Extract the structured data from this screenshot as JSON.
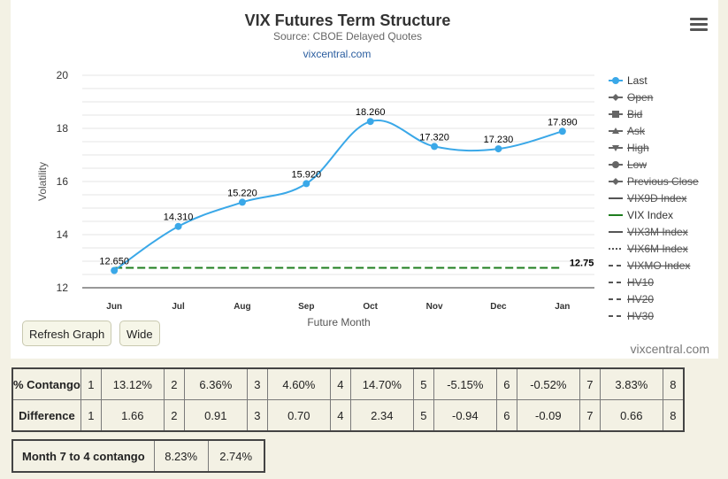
{
  "chart": {
    "title": "VIX Futures Term Structure",
    "subtitle": "Source: CBOE Delayed Quotes",
    "link": "vixcentral.com",
    "credit": "vixcentral.com"
  },
  "chart_data": {
    "type": "line",
    "title": "VIX Futures Term Structure",
    "subtitle": "Source: CBOE Delayed Quotes",
    "xlabel": "Future Month",
    "ylabel": "Volatility",
    "categories": [
      "Jun",
      "Jul",
      "Aug",
      "Sep",
      "Oct",
      "Nov",
      "Dec",
      "Jan"
    ],
    "ylim": [
      12,
      20
    ],
    "yticks": [
      "12",
      "14",
      "16",
      "18",
      "20"
    ],
    "grid": true,
    "legend_position": "right",
    "series": [
      {
        "name": "Last",
        "values": [
          12.65,
          14.31,
          15.22,
          15.92,
          18.26,
          17.32,
          17.23,
          17.89
        ],
        "labels": [
          "12.650",
          "14.310",
          "15.220",
          "15.920",
          "18.260",
          "17.320",
          "17.230",
          "17.890"
        ],
        "color": "#3aa8e8"
      },
      {
        "name": "VIX Index",
        "values": [
          12.75,
          12.75,
          12.75,
          12.75,
          12.75,
          12.75,
          12.75,
          12.75
        ],
        "end_label": "12.75",
        "color": "#1e7d1e",
        "dash": true
      }
    ],
    "legend": [
      {
        "name": "Last",
        "visible": true,
        "symbol": "circle"
      },
      {
        "name": "Open",
        "visible": false,
        "symbol": "diamond"
      },
      {
        "name": "Bid",
        "visible": false,
        "symbol": "square"
      },
      {
        "name": "Ask",
        "visible": false,
        "symbol": "triangle"
      },
      {
        "name": "High",
        "visible": false,
        "symbol": "triangle-down"
      },
      {
        "name": "Low",
        "visible": false,
        "symbol": "circle"
      },
      {
        "name": "Previous Close",
        "visible": false,
        "symbol": "diamond"
      },
      {
        "name": "VIX9D Index",
        "visible": false,
        "symbol": "line"
      },
      {
        "name": "VIX Index",
        "visible": true,
        "symbol": "line",
        "color": "#1e7d1e"
      },
      {
        "name": "VIX3M Index",
        "visible": false,
        "symbol": "line"
      },
      {
        "name": "VIX6M Index",
        "visible": false,
        "symbol": "dotted"
      },
      {
        "name": "VIXMO Index",
        "visible": false,
        "symbol": "dash"
      },
      {
        "name": "HV10",
        "visible": false,
        "symbol": "dash"
      },
      {
        "name": "HV20",
        "visible": false,
        "symbol": "dash"
      },
      {
        "name": "HV30",
        "visible": false,
        "symbol": "dash"
      }
    ]
  },
  "buttons": {
    "refresh": "Refresh Graph",
    "wide": "Wide"
  },
  "contango_table": {
    "rows": [
      {
        "label": "% Contango",
        "cells": [
          {
            "i": "1",
            "v": "13.12%"
          },
          {
            "i": "2",
            "v": "6.36%"
          },
          {
            "i": "3",
            "v": "4.60%"
          },
          {
            "i": "4",
            "v": "14.70%"
          },
          {
            "i": "5",
            "v": "-5.15%"
          },
          {
            "i": "6",
            "v": "-0.52%"
          },
          {
            "i": "7",
            "v": "3.83%"
          },
          {
            "i": "8",
            "v": ""
          }
        ]
      },
      {
        "label": "Difference",
        "cells": [
          {
            "i": "1",
            "v": "1.66"
          },
          {
            "i": "2",
            "v": "0.91"
          },
          {
            "i": "3",
            "v": "0.70"
          },
          {
            "i": "4",
            "v": "2.34"
          },
          {
            "i": "5",
            "v": "-0.94"
          },
          {
            "i": "6",
            "v": "-0.09"
          },
          {
            "i": "7",
            "v": "0.66"
          },
          {
            "i": "8",
            "v": ""
          }
        ]
      }
    ]
  },
  "month74": {
    "label": "Month 7 to 4 contango",
    "values": [
      "8.23%",
      "2.74%"
    ]
  }
}
